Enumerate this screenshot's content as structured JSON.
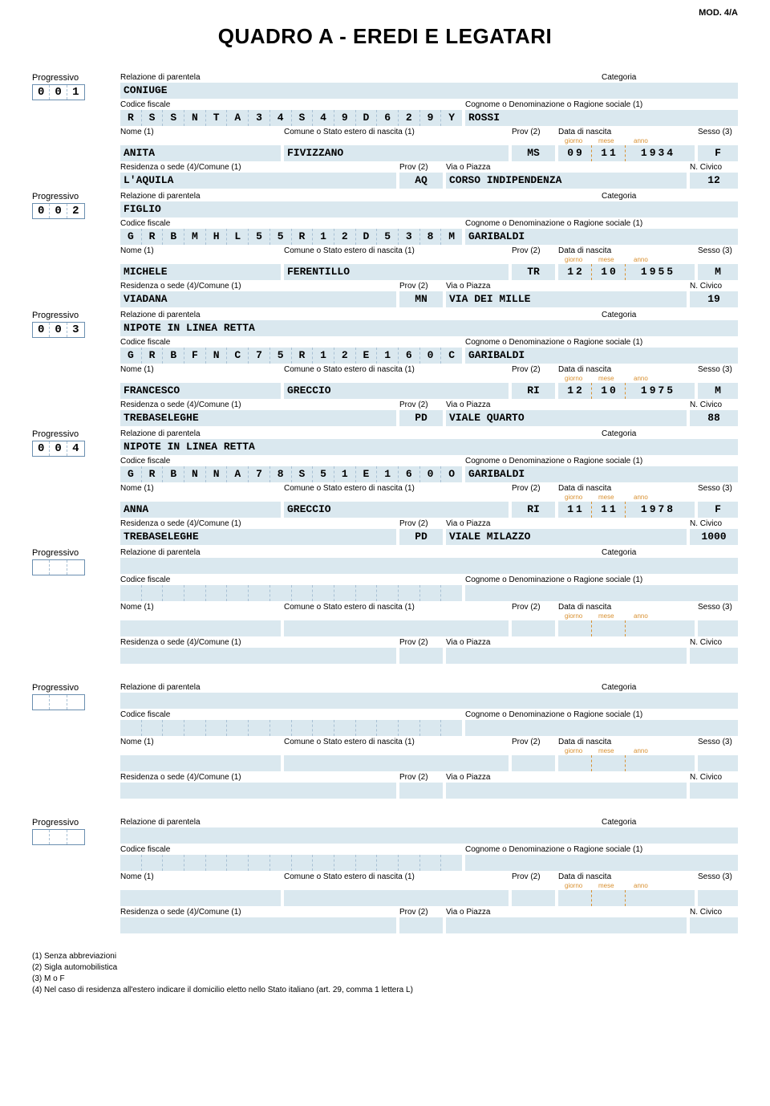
{
  "colors": {
    "field_bg": "#dae8ef",
    "border": "#6b8fb0",
    "dash": "#a8c0d4",
    "date_label": "#d89030",
    "text": "#000000",
    "background": "#ffffff"
  },
  "header": {
    "mod": "MOD. 4/A",
    "title": "QUADRO A - EREDI E LEGATARI"
  },
  "labels": {
    "progressivo": "Progressivo",
    "relazione": "Relazione di parentela",
    "categoria": "Categoria",
    "codice_fiscale": "Codice fiscale",
    "cognome": "Cognome o Denominazione o Ragione sociale (1)",
    "nome": "Nome (1)",
    "comune_nascita": "Comune o Stato estero di nascita (1)",
    "prov2": "Prov (2)",
    "data_nascita": "Data di nascita",
    "giorno": "giorno",
    "mese": "mese",
    "anno": "anno",
    "sesso": "Sesso (3)",
    "residenza": "Residenza o sede (4)/Comune (1)",
    "via": "Via o Piazza",
    "civico": "N. Civico"
  },
  "records": [
    {
      "progressivo": [
        "0",
        "0",
        "1"
      ],
      "relazione": "CONIUGE",
      "categoria": "",
      "codice_fiscale": [
        "R",
        "S",
        "S",
        "N",
        "T",
        "A",
        "3",
        "4",
        "S",
        "4",
        "9",
        "D",
        "6",
        "2",
        "9",
        "Y"
      ],
      "cognome": "ROSSI",
      "nome": "ANITA",
      "comune_nascita": "FIVIZZANO",
      "prov_nascita": "MS",
      "data_gg": "09",
      "data_mm": "11",
      "data_yyyy": "1934",
      "sesso": "F",
      "residenza": "L'AQUILA",
      "prov_res": "AQ",
      "via": "CORSO INDIPENDENZA",
      "civico": "12"
    },
    {
      "progressivo": [
        "0",
        "0",
        "2"
      ],
      "relazione": "FIGLIO",
      "categoria": "",
      "codice_fiscale": [
        "G",
        "R",
        "B",
        "M",
        "H",
        "L",
        "5",
        "5",
        "R",
        "1",
        "2",
        "D",
        "5",
        "3",
        "8",
        "M"
      ],
      "cognome": "GARIBALDI",
      "nome": "MICHELE",
      "comune_nascita": "FERENTILLO",
      "prov_nascita": "TR",
      "data_gg": "12",
      "data_mm": "10",
      "data_yyyy": "1955",
      "sesso": "M",
      "residenza": "VIADANA",
      "prov_res": "MN",
      "via": "VIA DEI MILLE",
      "civico": "19"
    },
    {
      "progressivo": [
        "0",
        "0",
        "3"
      ],
      "relazione": "NIPOTE IN LINEA RETTA",
      "categoria": "",
      "codice_fiscale": [
        "G",
        "R",
        "B",
        "F",
        "N",
        "C",
        "7",
        "5",
        "R",
        "1",
        "2",
        "E",
        "1",
        "6",
        "0",
        "C"
      ],
      "cognome": "GARIBALDI",
      "nome": "FRANCESCO",
      "comune_nascita": "GRECCIO",
      "prov_nascita": "RI",
      "data_gg": "12",
      "data_mm": "10",
      "data_yyyy": "1975",
      "sesso": "M",
      "residenza": "TREBASELEGHE",
      "prov_res": "PD",
      "via": "VIALE QUARTO",
      "civico": "88"
    },
    {
      "progressivo": [
        "0",
        "0",
        "4"
      ],
      "relazione": "NIPOTE IN LINEA RETTA",
      "categoria": "",
      "codice_fiscale": [
        "G",
        "R",
        "B",
        "N",
        "N",
        "A",
        "7",
        "8",
        "S",
        "5",
        "1",
        "E",
        "1",
        "6",
        "0",
        "O"
      ],
      "cognome": "GARIBALDI",
      "nome": "ANNA",
      "comune_nascita": "GRECCIO",
      "prov_nascita": "RI",
      "data_gg": "11",
      "data_mm": "11",
      "data_yyyy": "1978",
      "sesso": "F",
      "residenza": "TREBASELEGHE",
      "prov_res": "PD",
      "via": "VIALE MILAZZO",
      "civico": "1000"
    },
    {
      "progressivo": [
        "",
        "",
        ""
      ],
      "relazione": "",
      "categoria": "",
      "codice_fiscale": [
        "",
        "",
        "",
        "",
        "",
        "",
        "",
        "",
        "",
        "",
        "",
        "",
        "",
        "",
        "",
        ""
      ],
      "cognome": "",
      "nome": "",
      "comune_nascita": "",
      "prov_nascita": "",
      "data_gg": "",
      "data_mm": "",
      "data_yyyy": "",
      "sesso": "",
      "residenza": "",
      "prov_res": "",
      "via": "",
      "civico": ""
    },
    {
      "progressivo": [
        "",
        "",
        ""
      ],
      "relazione": "",
      "categoria": "",
      "codice_fiscale": [
        "",
        "",
        "",
        "",
        "",
        "",
        "",
        "",
        "",
        "",
        "",
        "",
        "",
        "",
        "",
        ""
      ],
      "cognome": "",
      "nome": "",
      "comune_nascita": "",
      "prov_nascita": "",
      "data_gg": "",
      "data_mm": "",
      "data_yyyy": "",
      "sesso": "",
      "residenza": "",
      "prov_res": "",
      "via": "",
      "civico": ""
    },
    {
      "progressivo": [
        "",
        "",
        ""
      ],
      "relazione": "",
      "categoria": "",
      "codice_fiscale": [
        "",
        "",
        "",
        "",
        "",
        "",
        "",
        "",
        "",
        "",
        "",
        "",
        "",
        "",
        "",
        ""
      ],
      "cognome": "",
      "nome": "",
      "comune_nascita": "",
      "prov_nascita": "",
      "data_gg": "",
      "data_mm": "",
      "data_yyyy": "",
      "sesso": "",
      "residenza": "",
      "prov_res": "",
      "via": "",
      "civico": ""
    }
  ],
  "footer": {
    "n1": "(1) Senza abbreviazioni",
    "n2": "(2) Sigla automobilistica",
    "n3": "(3) M o F",
    "n4": "(4) Nel caso di residenza all'estero indicare il domicilio eletto nello Stato italiano (art. 29, comma 1 lettera L)"
  }
}
